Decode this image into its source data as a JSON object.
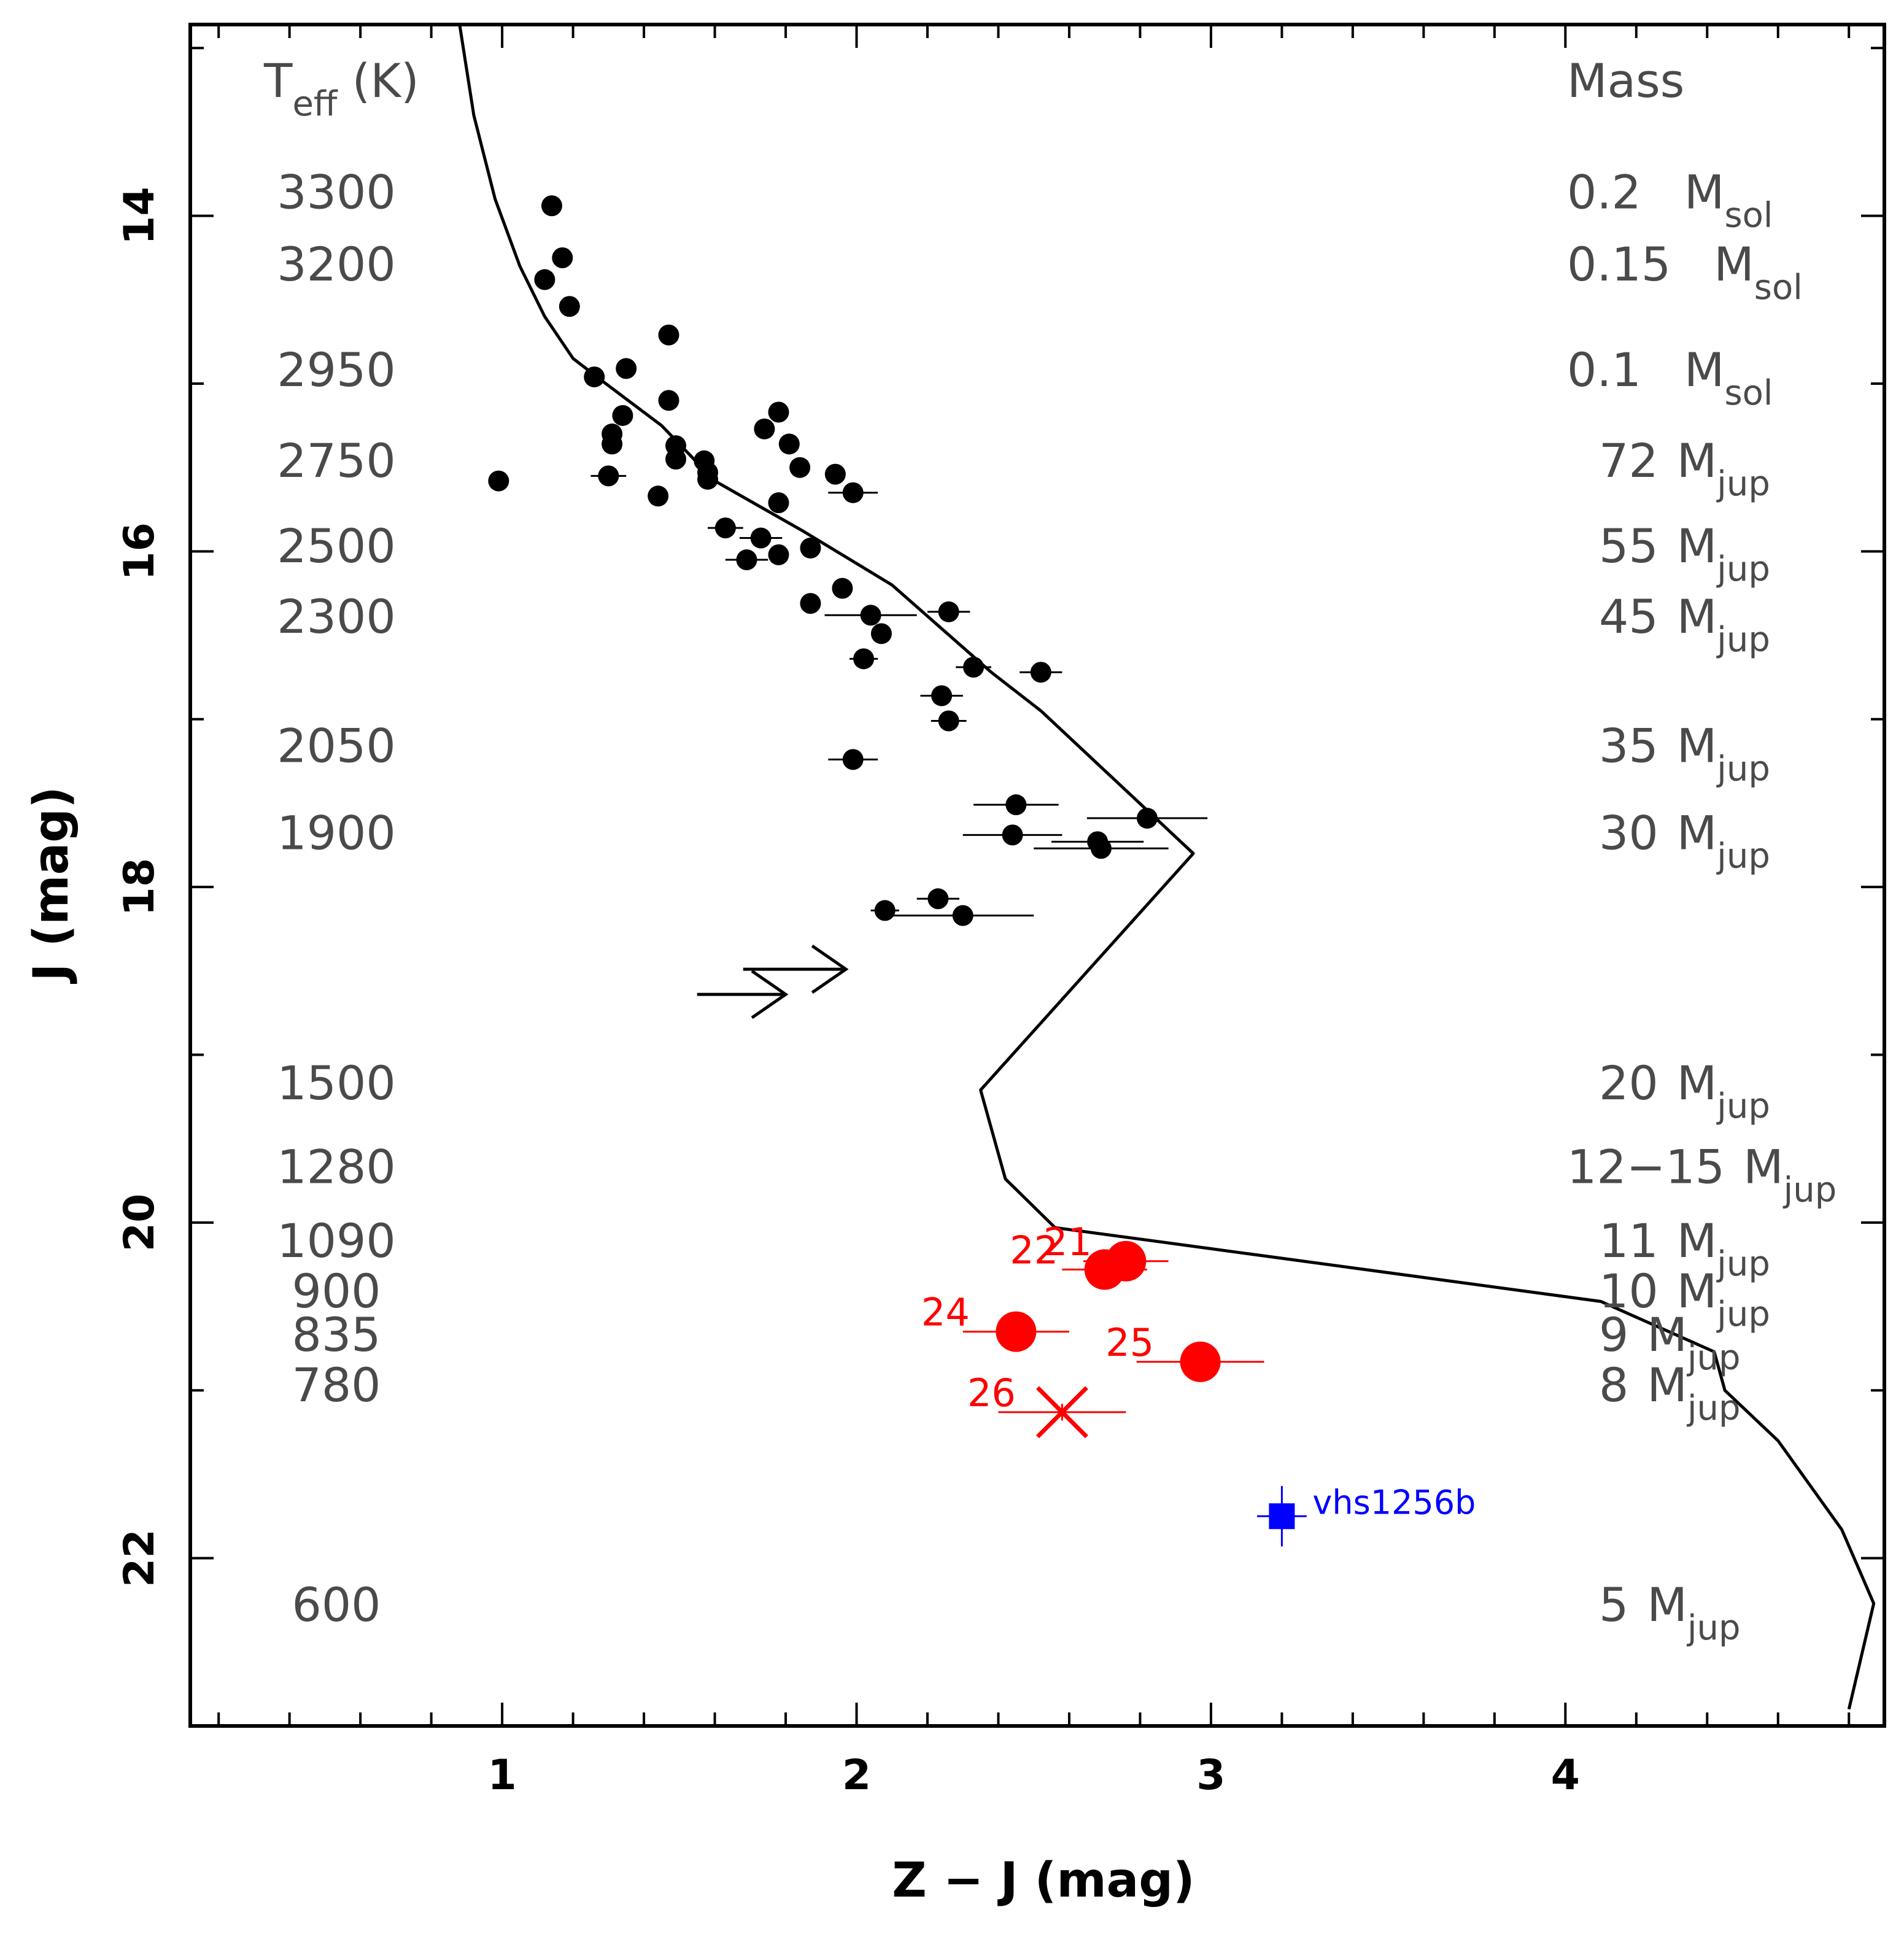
{
  "chart_data": {
    "type": "scatter",
    "title": "",
    "xlabel": "Z − J (mag)",
    "ylabel": "J (mag)",
    "xlim": [
      0.12,
      4.9
    ],
    "ylim": [
      23.0,
      12.86
    ],
    "x_ticks": [
      {
        "value": 1,
        "label": "1"
      },
      {
        "value": 2,
        "label": "2"
      },
      {
        "value": 3,
        "label": "3"
      },
      {
        "value": 4,
        "label": "4"
      }
    ],
    "y_ticks": [
      {
        "value": 14,
        "label": "14"
      },
      {
        "value": 16,
        "label": "16"
      },
      {
        "value": 18,
        "label": "18"
      },
      {
        "value": 20,
        "label": "20"
      },
      {
        "value": 22,
        "label": "22"
      }
    ],
    "x_minor_step": 0.2,
    "y_minor_step": 1,
    "teff_header": {
      "main": "T",
      "sub": "eff",
      "suffix": " (K)"
    },
    "mass_header": "Mass",
    "teff_labels": [
      {
        "J": 13.86,
        "text": "3300"
      },
      {
        "J": 14.29,
        "text": "3200"
      },
      {
        "J": 14.92,
        "text": "2950"
      },
      {
        "J": 15.46,
        "text": "2750"
      },
      {
        "J": 15.97,
        "text": "2500"
      },
      {
        "J": 16.39,
        "text": "2300"
      },
      {
        "J": 17.16,
        "text": "2050"
      },
      {
        "J": 17.68,
        "text": "1900"
      },
      {
        "J": 19.17,
        "text": "1500"
      },
      {
        "J": 19.67,
        "text": "1280"
      },
      {
        "J": 20.11,
        "text": "1090"
      },
      {
        "J": 20.41,
        "text": "900"
      },
      {
        "J": 20.67,
        "text": "835"
      },
      {
        "J": 20.97,
        "text": "780"
      },
      {
        "J": 22.28,
        "text": "600"
      }
    ],
    "mass_labels": [
      {
        "J": 13.86,
        "value": "0.2",
        "unit": "M",
        "sub": "sol"
      },
      {
        "J": 14.29,
        "value": "0.15",
        "unit": "M",
        "sub": "sol"
      },
      {
        "J": 14.92,
        "value": "0.1",
        "unit": "M",
        "sub": "sol"
      },
      {
        "J": 15.46,
        "value": "72",
        "unit": "M",
        "sub": "jup"
      },
      {
        "J": 15.97,
        "value": "55",
        "unit": "M",
        "sub": "jup"
      },
      {
        "J": 16.39,
        "value": "45",
        "unit": "M",
        "sub": "jup"
      },
      {
        "J": 17.16,
        "value": "35",
        "unit": "M",
        "sub": "jup"
      },
      {
        "J": 17.68,
        "value": "30",
        "unit": "M",
        "sub": "jup"
      },
      {
        "J": 19.17,
        "value": "20",
        "unit": "M",
        "sub": "jup"
      },
      {
        "J": 19.67,
        "value": "12−15",
        "unit": "M",
        "sub": "jup"
      },
      {
        "J": 20.11,
        "value": "11",
        "unit": "M",
        "sub": "jup"
      },
      {
        "J": 20.41,
        "value": "10",
        "unit": "M",
        "sub": "jup"
      },
      {
        "J": 20.67,
        "value": "9",
        "unit": "M",
        "sub": "jup"
      },
      {
        "J": 20.97,
        "value": "8",
        "unit": "M",
        "sub": "jup"
      },
      {
        "J": 22.28,
        "value": "5",
        "unit": "M",
        "sub": "jup"
      }
    ],
    "series": [
      {
        "name": "isochrone",
        "style": "line",
        "color": "#000000",
        "points": [
          [
            0.88,
            12.86
          ],
          [
            0.92,
            13.4
          ],
          [
            0.98,
            13.9
          ],
          [
            1.05,
            14.3
          ],
          [
            1.12,
            14.6
          ],
          [
            1.2,
            14.85
          ],
          [
            1.28,
            14.98
          ],
          [
            1.45,
            15.25
          ],
          [
            1.6,
            15.58
          ],
          [
            1.85,
            15.88
          ],
          [
            2.1,
            16.2
          ],
          [
            2.38,
            16.72
          ],
          [
            2.52,
            16.95
          ],
          [
            2.95,
            17.8
          ],
          [
            2.35,
            19.21
          ],
          [
            2.42,
            19.74
          ],
          [
            2.56,
            20.03
          ],
          [
            4.1,
            20.47
          ],
          [
            4.42,
            20.77
          ],
          [
            4.45,
            21.0
          ],
          [
            4.6,
            21.3
          ],
          [
            4.78,
            21.83
          ],
          [
            4.87,
            22.27
          ],
          [
            4.8,
            22.9
          ]
        ]
      },
      {
        "name": "members",
        "style": "black-dot",
        "color": "#000000",
        "points": [
          {
            "x": 1.14,
            "y": 13.94
          },
          {
            "x": 1.12,
            "y": 14.38
          },
          {
            "x": 1.17,
            "y": 14.25
          },
          {
            "x": 1.19,
            "y": 14.54
          },
          {
            "x": 1.47,
            "y": 14.71
          },
          {
            "x": 1.35,
            "y": 14.91
          },
          {
            "x": 1.26,
            "y": 14.96
          },
          {
            "x": 1.47,
            "y": 15.1
          },
          {
            "x": 1.78,
            "y": 15.17
          },
          {
            "x": 1.34,
            "y": 15.19
          },
          {
            "x": 1.74,
            "y": 15.27
          },
          {
            "x": 1.31,
            "y": 15.3
          },
          {
            "x": 1.31,
            "y": 15.36
          },
          {
            "x": 1.49,
            "y": 15.37
          },
          {
            "x": 1.81,
            "y": 15.36
          },
          {
            "x": 1.49,
            "y": 15.45
          },
          {
            "x": 1.57,
            "y": 15.46
          },
          {
            "x": 1.58,
            "y": 15.53
          },
          {
            "x": 1.84,
            "y": 15.5
          },
          {
            "x": 1.58,
            "y": 15.57
          },
          {
            "x": 1.94,
            "y": 15.54
          },
          {
            "x": 0.99,
            "y": 15.58
          },
          {
            "x": 1.3,
            "y": 15.55,
            "xerr": 0.05
          },
          {
            "x": 1.44,
            "y": 15.67
          },
          {
            "x": 1.99,
            "y": 15.65,
            "xerr": 0.07
          },
          {
            "x": 1.78,
            "y": 15.71
          },
          {
            "x": 1.63,
            "y": 15.86,
            "xerr": 0.05
          },
          {
            "x": 1.73,
            "y": 15.92,
            "xerr": 0.06
          },
          {
            "x": 1.87,
            "y": 15.98
          },
          {
            "x": 1.69,
            "y": 16.05,
            "xerr": 0.06
          },
          {
            "x": 1.78,
            "y": 16.02
          },
          {
            "x": 1.96,
            "y": 16.22
          },
          {
            "x": 1.87,
            "y": 16.31
          },
          {
            "x": 2.04,
            "y": 16.38,
            "xerr": 0.13
          },
          {
            "x": 2.26,
            "y": 16.36,
            "xerr": 0.06
          },
          {
            "x": 2.07,
            "y": 16.49
          },
          {
            "x": 2.02,
            "y": 16.64,
            "xerr": 0.04
          },
          {
            "x": 2.33,
            "y": 16.69,
            "xerr": 0.05
          },
          {
            "x": 2.52,
            "y": 16.72,
            "xerr": 0.06
          },
          {
            "x": 2.24,
            "y": 16.86,
            "xerr": 0.06
          },
          {
            "x": 2.26,
            "y": 17.01,
            "xerr": 0.05
          },
          {
            "x": 1.99,
            "y": 17.24,
            "xerr": 0.07
          },
          {
            "x": 2.45,
            "y": 17.51,
            "xerr": 0.12
          },
          {
            "x": 2.82,
            "y": 17.59,
            "xerr": 0.17
          },
          {
            "x": 2.44,
            "y": 17.69,
            "xerr": 0.14
          },
          {
            "x": 2.68,
            "y": 17.73,
            "xerr": 0.13
          },
          {
            "x": 2.69,
            "y": 17.77,
            "xerr": 0.19
          },
          {
            "x": 2.23,
            "y": 18.07,
            "xerr": 0.06
          },
          {
            "x": 2.08,
            "y": 18.14,
            "xerr": 0.04
          },
          {
            "x": 2.3,
            "y": 18.17,
            "xerr": 0.2
          }
        ]
      },
      {
        "name": "lower limits",
        "style": "arrow",
        "color": "#000000",
        "points": [
          {
            "x_start": 1.68,
            "x_end": 1.97,
            "y": 18.49
          },
          {
            "x_start": 1.55,
            "x_end": 1.8,
            "y": 18.64
          }
        ]
      },
      {
        "name": "new candidates",
        "style": "red-dot",
        "color": "#ff0000",
        "points": [
          {
            "label": "21",
            "x": 2.76,
            "y": 20.23,
            "xerr": 0.12,
            "yerr": 0.04
          },
          {
            "label": "22",
            "x": 2.7,
            "y": 20.28,
            "xerr": 0.12,
            "yerr": 0.04
          },
          {
            "label": "24",
            "x": 2.45,
            "y": 20.65,
            "xerr": 0.15,
            "yerr": 0.04
          },
          {
            "label": "25",
            "x": 2.97,
            "y": 20.83,
            "xerr": 0.18,
            "yerr": 0.08
          },
          {
            "label": "26",
            "x": 2.58,
            "y": 21.13,
            "xerr": 0.18,
            "yerr": 0.05,
            "marker": "x"
          }
        ]
      },
      {
        "name": "vhs1256b",
        "style": "blue-square",
        "color": "#0000ff",
        "points": [
          {
            "label": "vhs1256b",
            "x": 3.2,
            "y": 21.75,
            "xerr": 0.07,
            "yerr": 0.18
          }
        ]
      }
    ]
  }
}
